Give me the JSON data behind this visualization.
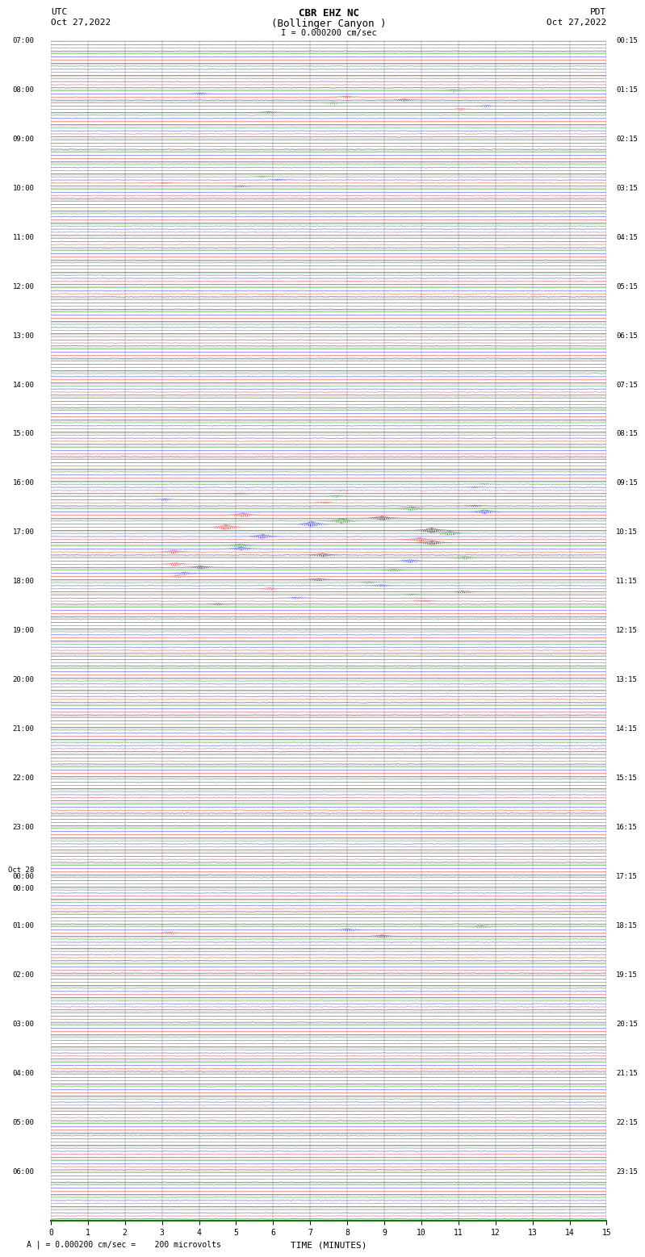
{
  "title_line1": "CBR EHZ NC",
  "title_line2": "(Bollinger Canyon )",
  "scale_label": "I = 0.000200 cm/sec",
  "left_label_top": "UTC",
  "left_label_date": "Oct 27,2022",
  "right_label_top": "PDT",
  "right_label_date": "Oct 27,2022",
  "bottom_label": "TIME (MINUTES)",
  "scale_note": "= 0.000200 cm/sec =    200 microvolts",
  "xlabel_ticks": [
    0,
    1,
    2,
    3,
    4,
    5,
    6,
    7,
    8,
    9,
    10,
    11,
    12,
    13,
    14,
    15
  ],
  "bg_color": "#ffffff",
  "plot_bg_color": "#ffffff",
  "grid_color": "#808080",
  "trace_colors": [
    "black",
    "red",
    "blue",
    "green"
  ],
  "utc_times": [
    "07:00",
    "",
    "",
    "",
    "08:00",
    "",
    "",
    "",
    "09:00",
    "",
    "",
    "",
    "10:00",
    "",
    "",
    "",
    "11:00",
    "",
    "",
    "",
    "12:00",
    "",
    "",
    "",
    "13:00",
    "",
    "",
    "",
    "14:00",
    "",
    "",
    "",
    "15:00",
    "",
    "",
    "",
    "16:00",
    "",
    "",
    "",
    "17:00",
    "",
    "",
    "",
    "18:00",
    "",
    "",
    "",
    "19:00",
    "",
    "",
    "",
    "20:00",
    "",
    "",
    "",
    "21:00",
    "",
    "",
    "",
    "22:00",
    "",
    "",
    "",
    "23:00",
    "",
    "",
    "",
    "Oct.28",
    "00:00",
    "",
    "",
    "01:00",
    "",
    "",
    "",
    "02:00",
    "",
    "",
    "",
    "03:00",
    "",
    "",
    "",
    "04:00",
    "",
    "",
    "",
    "05:00",
    "",
    "",
    "",
    "06:00",
    "",
    "",
    ""
  ],
  "pdt_times": [
    "00:15",
    "",
    "",
    "",
    "01:15",
    "",
    "",
    "",
    "02:15",
    "",
    "",
    "",
    "03:15",
    "",
    "",
    "",
    "04:15",
    "",
    "",
    "",
    "05:15",
    "",
    "",
    "",
    "06:15",
    "",
    "",
    "",
    "07:15",
    "",
    "",
    "",
    "08:15",
    "",
    "",
    "",
    "09:15",
    "",
    "",
    "",
    "10:15",
    "",
    "",
    "",
    "11:15",
    "",
    "",
    "",
    "12:15",
    "",
    "",
    "",
    "13:15",
    "",
    "",
    "",
    "14:15",
    "",
    "",
    "",
    "15:15",
    "",
    "",
    "",
    "16:15",
    "",
    "",
    "",
    "17:15",
    "",
    "",
    "",
    "18:15",
    "",
    "",
    "",
    "19:15",
    "",
    "",
    "",
    "20:15",
    "",
    "",
    "",
    "21:15",
    "",
    "",
    "",
    "22:15",
    "",
    "",
    "",
    "23:15",
    "",
    "",
    ""
  ],
  "n_rows": 96,
  "n_traces_per_row": 4,
  "noise_base": 0.06,
  "amplitude_scale": 0.11,
  "event_rows": [
    4,
    5,
    11,
    36,
    37,
    38,
    39,
    40,
    41,
    42,
    43,
    44,
    45,
    72
  ],
  "event_amplitudes": [
    2.5,
    2.0,
    1.8,
    1.5,
    2.0,
    5.0,
    6.0,
    5.0,
    4.0,
    3.5,
    3.0,
    2.5,
    2.0,
    3.0
  ]
}
